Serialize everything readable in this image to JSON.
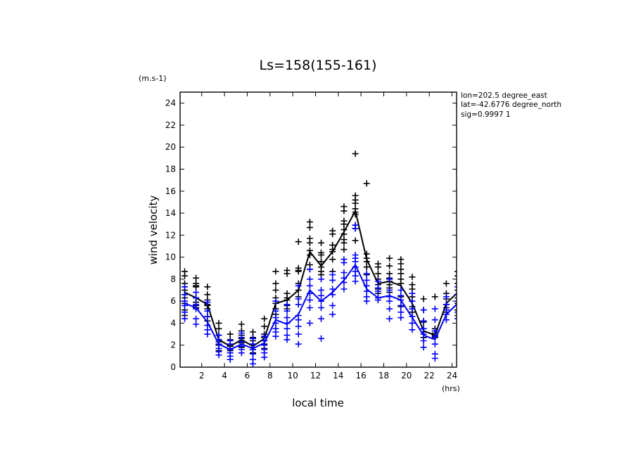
{
  "chart_data": {
    "type": "line",
    "title": "Ls=158(155-161)",
    "xlabel": "local time",
    "ylabel": "wind velocity",
    "x_unit": "(hrs)",
    "y_unit": "(m.s-1)",
    "info_lines": [
      "lon=202.5 degree_east",
      "lat=-42.6776 degree_north",
      "sig=0.9997 1"
    ],
    "xlim": [
      0.1,
      24.4
    ],
    "ylim": [
      0,
      25
    ],
    "x_ticks": [
      2,
      4,
      6,
      8,
      10,
      12,
      14,
      16,
      18,
      20,
      22,
      24
    ],
    "y_ticks": [
      0,
      2,
      4,
      6,
      8,
      10,
      12,
      14,
      16,
      18,
      20,
      22,
      24
    ],
    "grid": false,
    "hours": [
      0.5,
      1.5,
      2.5,
      3.5,
      4.5,
      5.5,
      6.5,
      7.5,
      8.5,
      9.5,
      10.5,
      11.5,
      12.5,
      13.5,
      14.5,
      15.5,
      16.5,
      17.5,
      18.5,
      19.5,
      20.5,
      21.5,
      22.5,
      23.5,
      24.5
    ],
    "series": [
      {
        "color": "#000000",
        "mean": [
          6.8,
          6.3,
          5.7,
          2.5,
          1.9,
          2.5,
          1.9,
          2.6,
          5.8,
          6.1,
          7.0,
          10.5,
          9.2,
          10.5,
          12.3,
          14.2,
          9.8,
          7.6,
          7.8,
          7.4,
          5.8,
          3.3,
          2.9,
          5.8,
          6.8
        ],
        "samples": [
          [
            8.7,
            8.3,
            7.6,
            7.0,
            6.6,
            6.3,
            5.8,
            5.2,
            4.7
          ],
          [
            8.1,
            7.6,
            7.4,
            7.3,
            6.3,
            5.9,
            5.6,
            5.4
          ],
          [
            7.3,
            6.6,
            6.1,
            5.7,
            5.6,
            5.3,
            4.6,
            4.2
          ],
          [
            4.0,
            3.5,
            2.9,
            2.5,
            2.3,
            2.0,
            1.5
          ],
          [
            3.0,
            2.5,
            2.1,
            1.9,
            1.7,
            1.5,
            1.3
          ],
          [
            3.9,
            3.3,
            2.9,
            2.6,
            2.4,
            2.2,
            1.8
          ],
          [
            3.2,
            2.7,
            2.4,
            2.1,
            1.8,
            1.6,
            1.3
          ],
          [
            4.4,
            3.7,
            3.0,
            2.7,
            2.4,
            2.1,
            1.7
          ],
          [
            8.7,
            7.6,
            7.0,
            6.3,
            5.8,
            5.3,
            4.8
          ],
          [
            8.8,
            8.5,
            6.7,
            6.3,
            6.1,
            5.6,
            5.3
          ],
          [
            11.4,
            9.0,
            8.8,
            8.7,
            7.6,
            7.0,
            6.4
          ],
          [
            13.2,
            12.7,
            11.7,
            11.3,
            10.6,
            10.2,
            9.3,
            8.9
          ],
          [
            11.3,
            10.4,
            10.2,
            9.6,
            9.1,
            8.7,
            8.4
          ],
          [
            12.4,
            12.1,
            11.1,
            10.7,
            10.5,
            9.8,
            8.7
          ],
          [
            14.6,
            14.2,
            13.3,
            13.0,
            12.5,
            12.1,
            11.6,
            11.3,
            10.7
          ],
          [
            19.4,
            15.6,
            15.2,
            14.9,
            14.4,
            14.1,
            13.9,
            12.9,
            12.6,
            11.5
          ],
          [
            16.7,
            10.3,
            9.9,
            9.6,
            9.1,
            8.4
          ],
          [
            9.4,
            9.1,
            8.5,
            8.0,
            7.5,
            7.1,
            6.7
          ],
          [
            9.9,
            9.2,
            8.5,
            8.1,
            7.8,
            7.5,
            7.2,
            6.8
          ],
          [
            9.8,
            9.4,
            8.9,
            8.5,
            8.0,
            7.6,
            6.4,
            5.5
          ],
          [
            8.2,
            7.5,
            7.1,
            6.4,
            6.0,
            5.5,
            5.0
          ],
          [
            6.2,
            5.2,
            4.1,
            3.5,
            3.2,
            2.7
          ],
          [
            6.4,
            3.5,
            3.1,
            2.9,
            2.7
          ],
          [
            7.6,
            6.7,
            6.2,
            5.7,
            5.4,
            5.0
          ],
          [
            8.7,
            8.3,
            7.6,
            7.0,
            6.6,
            6.3,
            5.8,
            5.2,
            4.7
          ]
        ]
      },
      {
        "color": "#0000ff",
        "mean": [
          5.8,
          5.4,
          4.1,
          2.1,
          1.6,
          2.1,
          1.7,
          2.2,
          4.3,
          3.9,
          4.8,
          7.0,
          6.0,
          6.8,
          7.9,
          9.3,
          7.1,
          6.3,
          6.5,
          6.1,
          4.5,
          2.9,
          2.5,
          4.8,
          5.8
        ],
        "samples": [
          [
            7.3,
            6.6,
            6.0,
            5.6,
            5.0,
            4.4
          ],
          [
            6.8,
            6.3,
            5.7,
            5.3,
            4.4,
            3.9
          ],
          [
            5.9,
            5.1,
            4.6,
            3.8,
            3.4,
            3.0
          ],
          [
            2.9,
            2.5,
            2.1,
            1.7,
            1.4,
            1.1
          ],
          [
            2.4,
            2.1,
            1.6,
            1.3,
            1.0,
            0.7
          ],
          [
            3.1,
            2.7,
            2.3,
            1.9,
            1.6,
            1.3
          ],
          [
            2.6,
            2.1,
            1.6,
            1.2,
            0.7,
            0.3
          ],
          [
            2.8,
            2.4,
            2.0,
            1.6,
            1.3,
            0.9
          ],
          [
            6.0,
            5.1,
            4.5,
            4.0,
            3.5,
            3.2,
            2.8
          ],
          [
            5.7,
            5.1,
            4.5,
            4.0,
            3.5,
            2.9,
            2.5
          ],
          [
            7.4,
            6.2,
            5.7,
            4.7,
            4.3,
            3.7,
            3.0,
            2.1
          ],
          [
            8.9,
            8.0,
            7.4,
            6.7,
            6.1,
            5.4,
            4.0
          ],
          [
            8.0,
            7.0,
            6.5,
            6.0,
            5.4,
            4.4,
            2.6
          ],
          [
            8.4,
            7.9,
            7.1,
            6.6,
            5.6,
            4.8
          ],
          [
            9.8,
            9.5,
            8.6,
            8.1,
            7.7,
            7.1
          ],
          [
            12.9,
            12.6,
            10.2,
            9.9,
            9.6,
            9.1,
            8.7,
            8.3,
            7.8
          ],
          [
            8.5,
            7.9,
            7.4,
            6.9,
            6.4,
            6.0
          ],
          [
            7.8,
            7.2,
            6.9,
            6.3,
            6.1
          ],
          [
            8.0,
            7.0,
            6.4,
            6.0,
            5.3,
            4.4
          ],
          [
            7.0,
            6.5,
            6.1,
            5.6,
            5.0,
            4.5
          ],
          [
            6.7,
            6.0,
            5.3,
            4.6,
            4.0,
            3.4
          ],
          [
            5.2,
            4.2,
            3.5,
            3.0,
            2.4,
            1.8
          ],
          [
            5.3,
            4.3,
            3.3,
            2.8,
            2.1,
            1.2,
            0.8
          ],
          [
            6.4,
            5.7,
            5.2,
            4.8,
            4.3
          ],
          [
            7.3,
            6.6,
            6.0,
            5.6,
            5.0,
            4.4
          ]
        ]
      }
    ]
  }
}
